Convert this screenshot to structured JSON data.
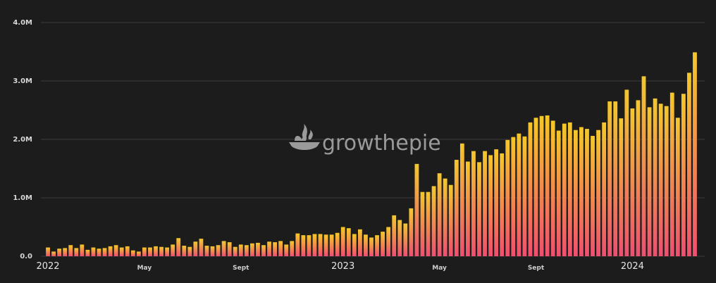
{
  "watermark": {
    "text": "growthepie",
    "icon": "pie-logo-icon"
  },
  "colors": {
    "background": "#1c1c1c",
    "grid": "#3a3a3a",
    "bar_top": "#f5c82a",
    "bar_bottom": "#ef4f6f"
  },
  "chart_data": {
    "type": "bar",
    "title": "",
    "xlabel": "",
    "ylabel": "",
    "ylim": [
      0,
      4000000
    ],
    "grid": true,
    "y_ticks": [
      {
        "value": 0,
        "label": "0.0"
      },
      {
        "value": 1000000,
        "label": "1.0M"
      },
      {
        "value": 2000000,
        "label": "2.0M"
      },
      {
        "value": 3000000,
        "label": "3.0M"
      },
      {
        "value": 4000000,
        "label": "4.0M"
      }
    ],
    "x_ticks": [
      {
        "index": 0,
        "label": "2022",
        "major": true
      },
      {
        "index": 17,
        "label": "May",
        "major": false
      },
      {
        "index": 34,
        "label": "Sept",
        "major": false
      },
      {
        "index": 52,
        "label": "2023",
        "major": true
      },
      {
        "index": 69,
        "label": "May",
        "major": false
      },
      {
        "index": 86,
        "label": "Sept",
        "major": false
      },
      {
        "index": 103,
        "label": "2024",
        "major": true
      }
    ],
    "values": [
      150000,
      80000,
      130000,
      140000,
      190000,
      140000,
      200000,
      110000,
      150000,
      130000,
      140000,
      170000,
      190000,
      150000,
      170000,
      100000,
      80000,
      150000,
      150000,
      170000,
      160000,
      150000,
      200000,
      310000,
      180000,
      160000,
      250000,
      300000,
      180000,
      170000,
      190000,
      260000,
      240000,
      160000,
      200000,
      190000,
      220000,
      230000,
      190000,
      250000,
      240000,
      260000,
      200000,
      260000,
      390000,
      360000,
      360000,
      380000,
      380000,
      370000,
      370000,
      400000,
      500000,
      480000,
      380000,
      460000,
      370000,
      320000,
      360000,
      420000,
      500000,
      700000,
      620000,
      560000,
      820000,
      1580000,
      1100000,
      1100000,
      1200000,
      1420000,
      1330000,
      1220000,
      1650000,
      1930000,
      1620000,
      1800000,
      1610000,
      1800000,
      1730000,
      1830000,
      1760000,
      1990000,
      2040000,
      2100000,
      2050000,
      2290000,
      2370000,
      2400000,
      2410000,
      2320000,
      2150000,
      2270000,
      2290000,
      2160000,
      2210000,
      2180000,
      2060000,
      2160000,
      2290000,
      2650000,
      2650000,
      2360000,
      2850000,
      2530000,
      2670000,
      3080000,
      2550000,
      2700000,
      2610000,
      2570000,
      2800000,
      2370000,
      2780000,
      3140000,
      3490000
    ]
  }
}
